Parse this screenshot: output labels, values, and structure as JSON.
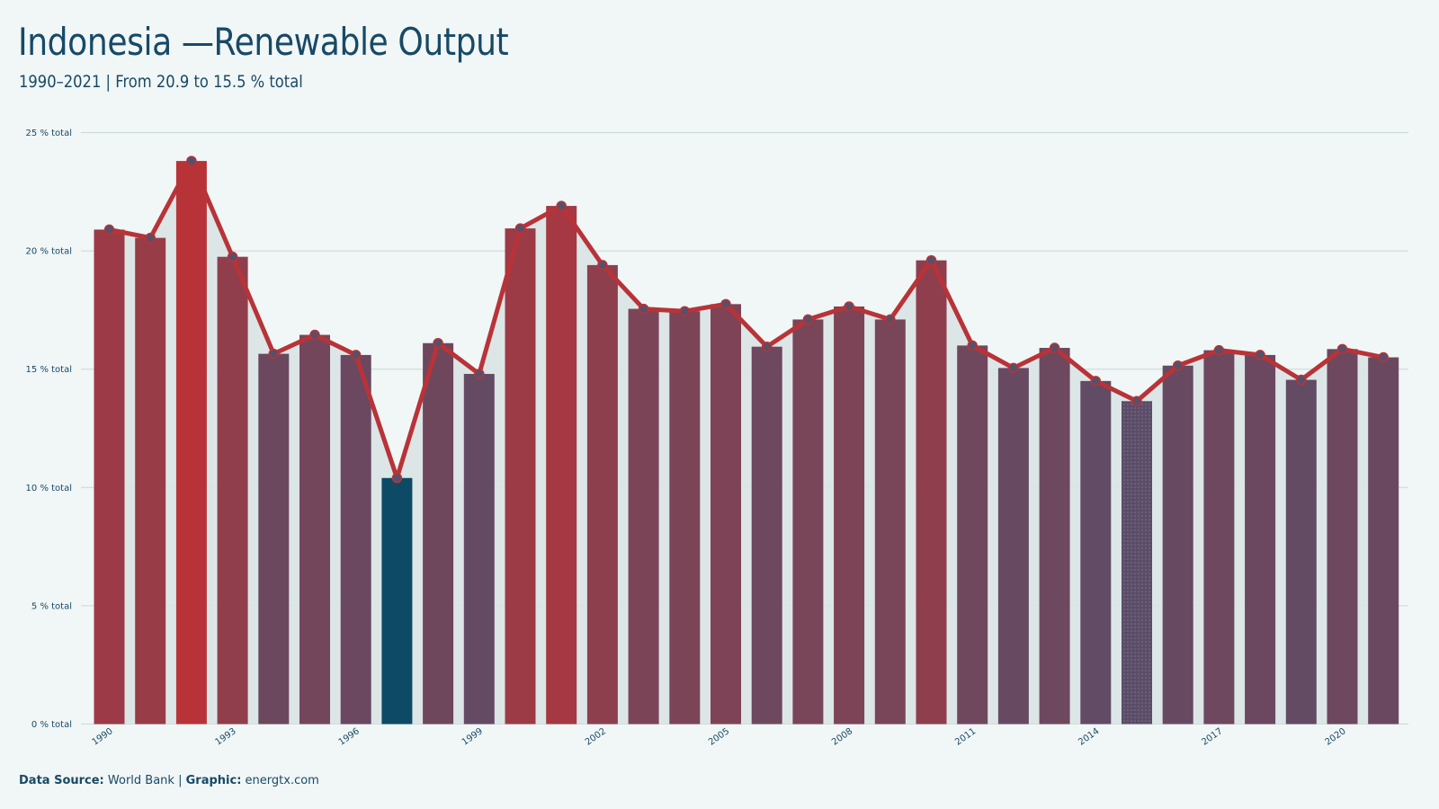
{
  "header": {
    "title": "Indonesia —Renewable Output",
    "subtitle": "1990–2021 | From 20.9 to 15.5 % total"
  },
  "footer": {
    "source_label": "Data Source:",
    "source_value": "World Bank",
    "separator": "|",
    "graphic_label": "Graphic:",
    "graphic_value": "energtx.com"
  },
  "chart_data": {
    "type": "bar",
    "title": "Indonesia —Renewable Output",
    "subtitle": "1990–2021 | From 20.9 to 15.5 % total",
    "xlabel": "",
    "ylabel": "",
    "ylim": [
      0,
      25
    ],
    "y_ticks": [
      "0 % total",
      "5 % total",
      "10 % total",
      "15 % total",
      "20 % total",
      "25 % total"
    ],
    "x_tick_labels": [
      "1990",
      "1993",
      "1996",
      "1999",
      "2002",
      "2005",
      "2008",
      "2011",
      "2014",
      "2017",
      "2020"
    ],
    "grid": "horizontal",
    "overlay": "line with markers and shaded area",
    "categories": [
      1990,
      1991,
      1992,
      1993,
      1994,
      1995,
      1996,
      1997,
      1998,
      1999,
      2000,
      2001,
      2002,
      2003,
      2004,
      2005,
      2006,
      2007,
      2008,
      2009,
      2010,
      2011,
      2012,
      2013,
      2014,
      2015,
      2016,
      2017,
      2018,
      2019,
      2020,
      2021
    ],
    "values": [
      20.9,
      20.55,
      23.8,
      19.75,
      15.65,
      16.45,
      15.6,
      10.4,
      16.1,
      14.8,
      20.95,
      21.9,
      19.4,
      17.55,
      17.45,
      17.75,
      15.95,
      17.1,
      17.65,
      17.1,
      19.6,
      16.0,
      15.05,
      15.9,
      14.5,
      13.65,
      15.15,
      15.8,
      15.6,
      14.55,
      15.85,
      15.5
    ],
    "colors": {
      "high": "#b83338",
      "low": "#5b4d68",
      "min_bar": "#0d4a66",
      "line": "#b83338",
      "marker": "#5a4f68",
      "area": "#d9e4e6",
      "grid": "#c9d8da"
    }
  }
}
